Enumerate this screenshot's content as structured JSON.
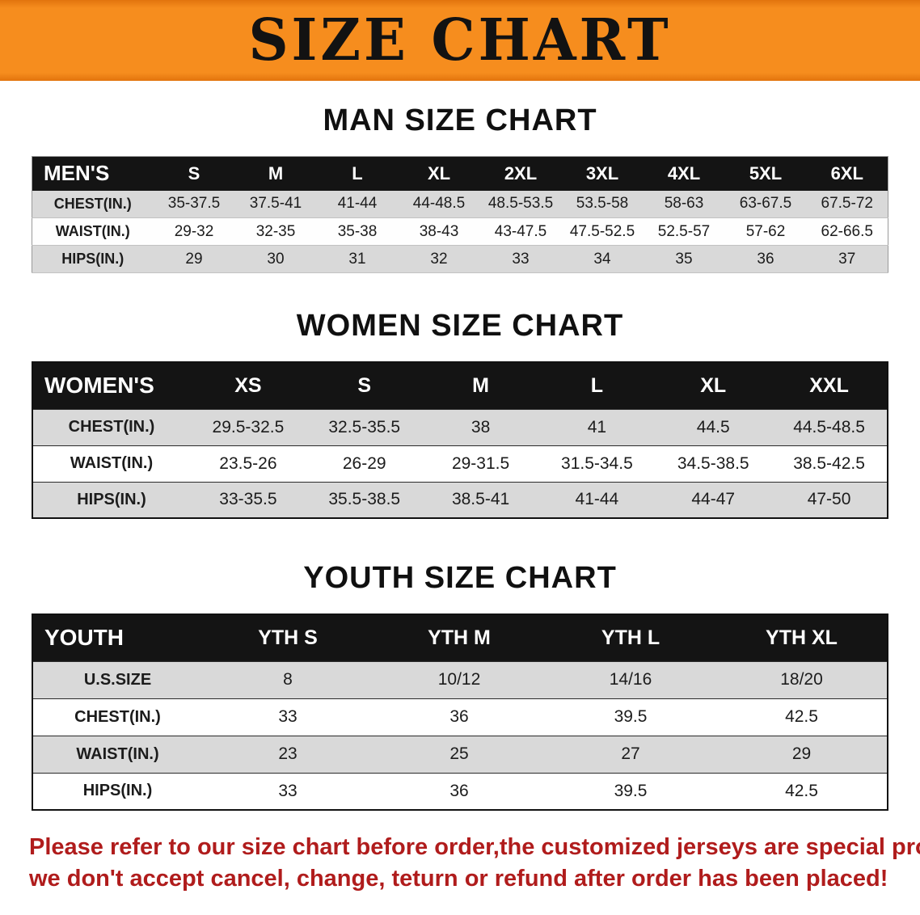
{
  "banner": {
    "title": "SIZE CHART",
    "bg_color": "#f68d1e",
    "text_color": "#121212"
  },
  "sections": [
    {
      "heading": "MAN SIZE CHART",
      "table": {
        "label": "MEN'S",
        "columns": [
          "S",
          "M",
          "L",
          "XL",
          "2XL",
          "3XL",
          "4XL",
          "5XL",
          "6XL"
        ],
        "rows": [
          {
            "label": "CHEST(IN.)",
            "values": [
              "35-37.5",
              "37.5-41",
              "41-44",
              "44-48.5",
              "48.5-53.5",
              "53.5-58",
              "58-63",
              "63-67.5",
              "67.5-72"
            ]
          },
          {
            "label": "WAIST(IN.)",
            "values": [
              "29-32",
              "32-35",
              "35-38",
              "38-43",
              "43-47.5",
              "47.5-52.5",
              "52.5-57",
              "57-62",
              "62-66.5"
            ]
          },
          {
            "label": "HIPS(IN.)",
            "values": [
              "29",
              "30",
              "31",
              "32",
              "33",
              "34",
              "35",
              "36",
              "37"
            ]
          }
        ]
      }
    },
    {
      "heading": "WOMEN SIZE CHART",
      "table": {
        "label": "WOMEN'S",
        "columns": [
          "XS",
          "S",
          "M",
          "L",
          "XL",
          "XXL"
        ],
        "rows": [
          {
            "label": "CHEST(IN.)",
            "values": [
              "29.5-32.5",
              "32.5-35.5",
              "38",
              "41",
              "44.5",
              "44.5-48.5"
            ]
          },
          {
            "label": "WAIST(IN.)",
            "values": [
              "23.5-26",
              "26-29",
              "29-31.5",
              "31.5-34.5",
              "34.5-38.5",
              "38.5-42.5"
            ]
          },
          {
            "label": "HIPS(IN.)",
            "values": [
              "33-35.5",
              "35.5-38.5",
              "38.5-41",
              "41-44",
              "44-47",
              "47-50"
            ]
          }
        ]
      }
    },
    {
      "heading": "YOUTH SIZE CHART",
      "table": {
        "label": "YOUTH",
        "columns": [
          "YTH S",
          "YTH M",
          "YTH L",
          "YTH XL"
        ],
        "rows": [
          {
            "label": "U.S.SIZE",
            "values": [
              "8",
              "10/12",
              "14/16",
              "18/20"
            ]
          },
          {
            "label": "CHEST(IN.)",
            "values": [
              "33",
              "36",
              "39.5",
              "42.5"
            ]
          },
          {
            "label": "WAIST(IN.)",
            "values": [
              "23",
              "25",
              "27",
              "29"
            ]
          },
          {
            "label": "HIPS(IN.)",
            "values": [
              "33",
              "36",
              "39.5",
              "42.5"
            ]
          }
        ]
      }
    }
  ],
  "disclaimer": {
    "line1": "Please refer to our size chart before order,the customized jerseys are special products,",
    "line2": "we don't accept cancel, change, teturn or refund after order has been placed!",
    "text_color": "#b01c1c"
  }
}
